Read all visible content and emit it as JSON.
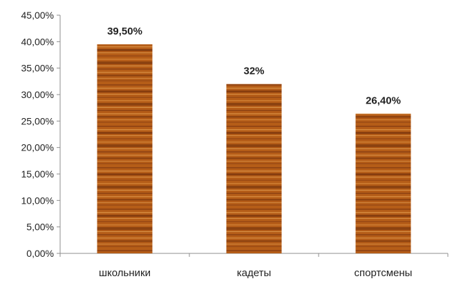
{
  "chart_data": {
    "type": "bar",
    "categories": [
      "школьники",
      "кадеты",
      "спортсмены"
    ],
    "values": [
      39.5,
      32,
      26.4
    ],
    "data_labels": [
      "39,50%",
      "32%",
      "26,40%"
    ],
    "y_tick_values": [
      0,
      5,
      10,
      15,
      20,
      25,
      30,
      35,
      40,
      45
    ],
    "y_tick_labels": [
      "0,00%",
      "5,00%",
      "10,00%",
      "15,00%",
      "20,00%",
      "25,00%",
      "30,00%",
      "35,00%",
      "40,00%",
      "45,00%"
    ],
    "ylim": [
      0,
      45
    ],
    "grid": false,
    "legend": "none",
    "bar_texture": "wood-grain",
    "bar_colors": {
      "base": "#b55d18",
      "dark": "#6a2a08",
      "light": "#e29a4c"
    },
    "axis_color": "#8c8c8c",
    "title": "",
    "xlabel": "",
    "ylabel": ""
  }
}
